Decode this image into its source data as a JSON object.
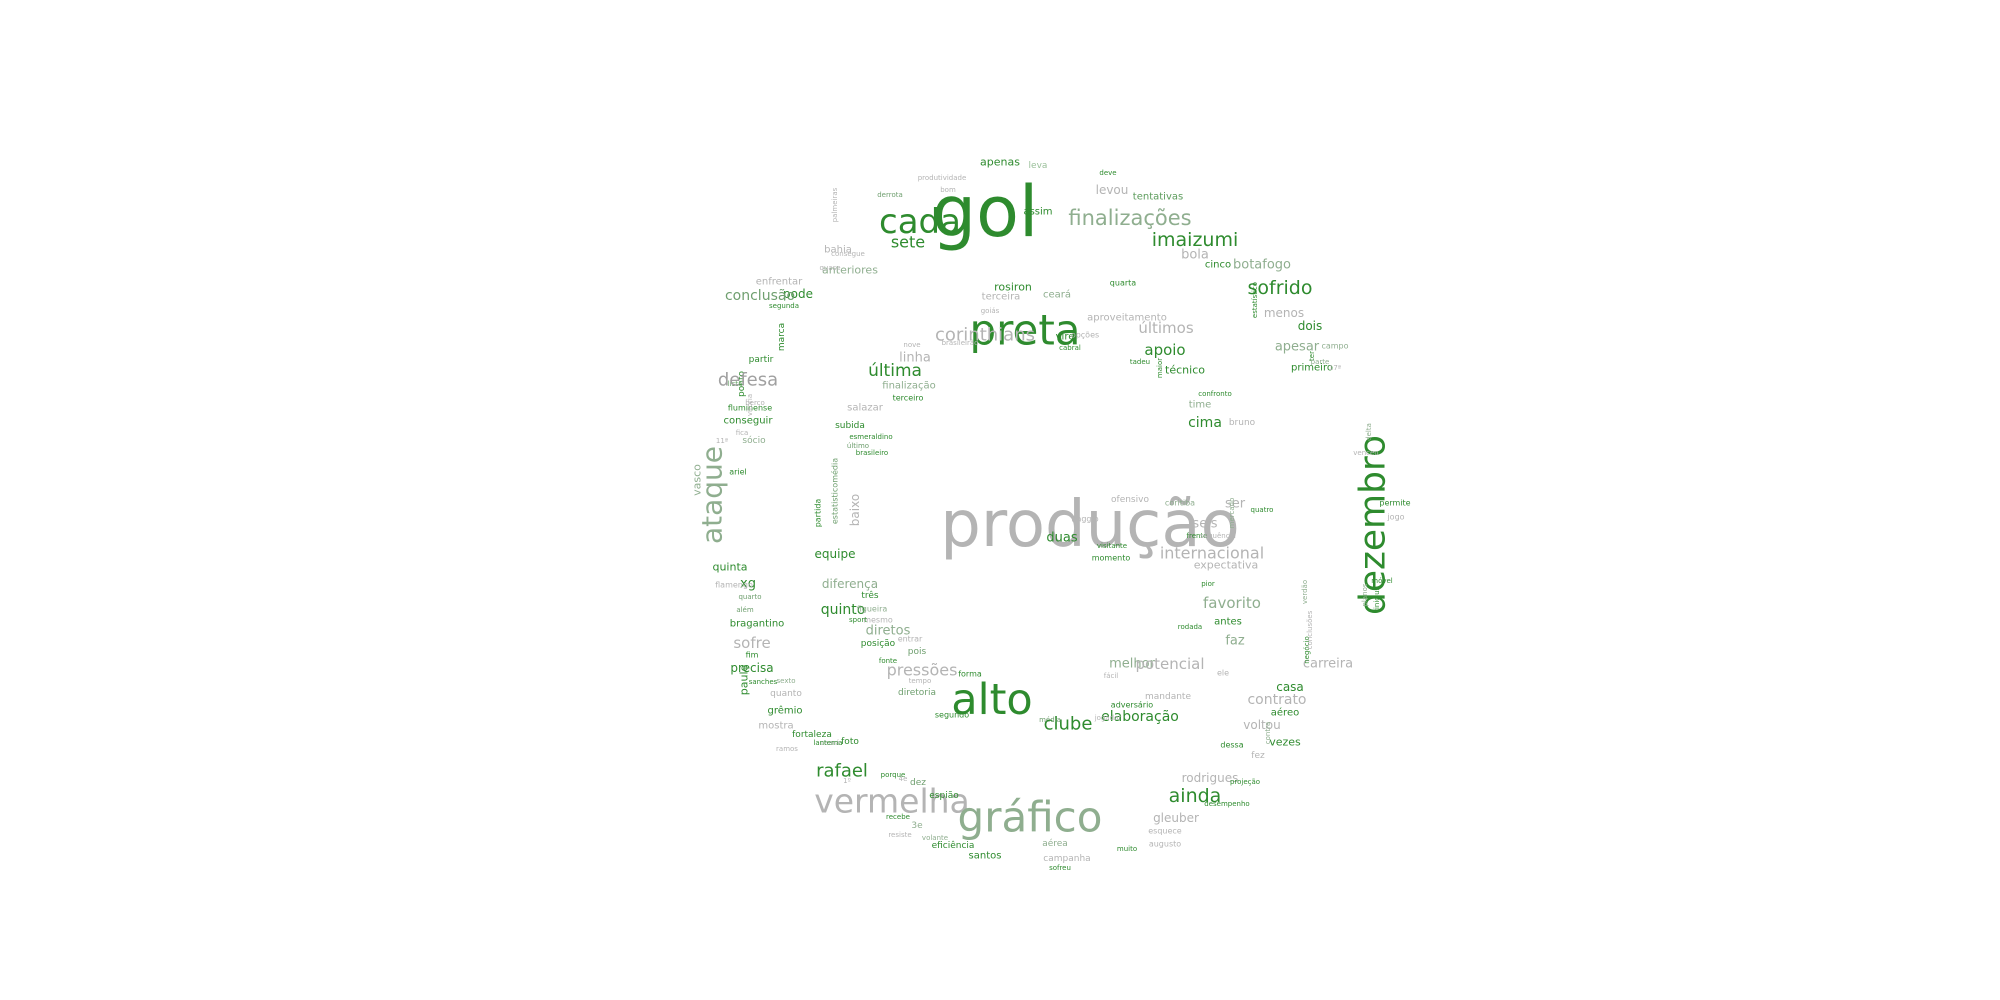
{
  "colors": {
    "background": "#ffffff",
    "dark_green": "#228b22",
    "medium_green": "#3f9a3f",
    "sage": "#6f9f6f",
    "grey": "#b4b4b4",
    "light_grey": "#c8c8c8"
  },
  "words": [
    {
      "text": "gol",
      "color": "#2e8b2e",
      "vertical": false
    },
    {
      "text": "cada",
      "color": "#2e8b2e",
      "vertical": false
    },
    {
      "text": "finalizações",
      "color": "#8fae8f",
      "vertical": false
    },
    {
      "text": "apenas",
      "color": "#2e8b2e",
      "vertical": false
    },
    {
      "text": "leva",
      "color": "#9ac09a",
      "vertical": false
    },
    {
      "text": "levou",
      "color": "#b4b4b4",
      "vertical": false
    },
    {
      "text": "tentativas",
      "color": "#5c9c5c",
      "vertical": false
    },
    {
      "text": "assim",
      "color": "#2e8b2e",
      "vertical": false
    },
    {
      "text": "deve",
      "color": "#2e8b2e",
      "vertical": false
    },
    {
      "text": "produtividade",
      "color": "#b4b4b4",
      "vertical": false
    },
    {
      "text": "derrota",
      "color": "#6f9f6f",
      "vertical": false
    },
    {
      "text": "bom",
      "color": "#b4b4b4",
      "vertical": false
    },
    {
      "text": "imaizumi",
      "color": "#2e8b2e",
      "vertical": false
    },
    {
      "text": "bola",
      "color": "#b4b4b4",
      "vertical": false
    },
    {
      "text": "cinco",
      "color": "#2e8b2e",
      "vertical": false
    },
    {
      "text": "botafogo",
      "color": "#8fae8f",
      "vertical": false
    },
    {
      "text": "sete",
      "color": "#2e8b2e",
      "vertical": false
    },
    {
      "text": "anteriores",
      "color": "#8fae8f",
      "vertical": false
    },
    {
      "text": "bahia",
      "color": "#b4b4b4",
      "vertical": false
    },
    {
      "text": "palmeiras",
      "color": "#b4b4b4",
      "vertical": true
    },
    {
      "text": "consegue",
      "color": "#b4b4b4",
      "vertical": false
    },
    {
      "text": "quase",
      "color": "#b4b4b4",
      "vertical": false
    },
    {
      "text": "enfrentar",
      "color": "#b4b4b4",
      "vertical": false
    },
    {
      "text": "pode",
      "color": "#2e8b2e",
      "vertical": false
    },
    {
      "text": "segunda",
      "color": "#2e8b2e",
      "vertical": false
    },
    {
      "text": "conclusão",
      "color": "#6f9f6f",
      "vertical": false
    },
    {
      "text": "marca",
      "color": "#2e8b2e",
      "vertical": true
    },
    {
      "text": "partir",
      "color": "#2e8b2e",
      "vertical": false
    },
    {
      "text": "ponto",
      "color": "#2e8b2e",
      "vertical": true
    },
    {
      "text": "lista",
      "color": "#5c9c5c",
      "vertical": false
    },
    {
      "text": "defesa",
      "color": "#a0a0a0",
      "vertical": false
    },
    {
      "text": "fluminense",
      "color": "#2e8b2e",
      "vertical": false
    },
    {
      "text": "conseguir",
      "color": "#2e8b2e",
      "vertical": false
    },
    {
      "text": "vitória",
      "color": "#b4b4b4",
      "vertical": true
    },
    {
      "text": "berço",
      "color": "#b4b4b4",
      "vertical": false
    },
    {
      "text": "fica",
      "color": "#b4b4b4",
      "vertical": false
    },
    {
      "text": "sócio",
      "color": "#8fae8f",
      "vertical": false
    },
    {
      "text": "11ª",
      "color": "#b4b4b4",
      "vertical": false
    },
    {
      "text": "ataque",
      "color": "#8fae8f",
      "vertical": true
    },
    {
      "text": "ariel",
      "color": "#2e8b2e",
      "vertical": false
    },
    {
      "text": "vasco",
      "color": "#8fae8f",
      "vertical": true
    },
    {
      "text": "quinta",
      "color": "#2e8b2e",
      "vertical": false
    },
    {
      "text": "xg",
      "color": "#2e8b2e",
      "vertical": false
    },
    {
      "text": "flamengo",
      "color": "#b4b4b4",
      "vertical": false
    },
    {
      "text": "quarto",
      "color": "#6f9f6f",
      "vertical": false
    },
    {
      "text": "além",
      "color": "#6f9f6f",
      "vertical": false
    },
    {
      "text": "bragantino",
      "color": "#2e8b2e",
      "vertical": false
    },
    {
      "text": "sofre",
      "color": "#b4b4b4",
      "vertical": false
    },
    {
      "text": "fim",
      "color": "#2e8b2e",
      "vertical": false
    },
    {
      "text": "precisa",
      "color": "#2e8b2e",
      "vertical": false
    },
    {
      "text": "paulo",
      "color": "#2e8b2e",
      "vertical": true
    },
    {
      "text": "sanches",
      "color": "#2e8b2e",
      "vertical": false
    },
    {
      "text": "sexto",
      "color": "#8fae8f",
      "vertical": false
    },
    {
      "text": "quanto",
      "color": "#b4b4b4",
      "vertical": false
    },
    {
      "text": "grêmio",
      "color": "#2e8b2e",
      "vertical": false
    },
    {
      "text": "mostra",
      "color": "#b4b4b4",
      "vertical": false
    },
    {
      "text": "fortaleza",
      "color": "#2e8b2e",
      "vertical": false
    },
    {
      "text": "ramos",
      "color": "#b4b4b4",
      "vertical": false
    },
    {
      "text": "ceará",
      "color": "#b4b4b4",
      "vertical": false
    },
    {
      "text": "lanterna",
      "color": "#2e8b2e",
      "vertical": false
    },
    {
      "text": "foto",
      "color": "#2e8b2e",
      "vertical": false
    },
    {
      "text": "preta",
      "color": "#2e8b2e",
      "vertical": false
    },
    {
      "text": "rosiron",
      "color": "#2e8b2e",
      "vertical": false
    },
    {
      "text": "ceará",
      "color": "#8fae8f",
      "vertical": false
    },
    {
      "text": "quarta",
      "color": "#2e8b2e",
      "vertical": false
    },
    {
      "text": "terceira",
      "color": "#b4b4b4",
      "vertical": false
    },
    {
      "text": "aproveitamento",
      "color": "#b4b4b4",
      "vertical": false
    },
    {
      "text": "goiás",
      "color": "#b4b4b4",
      "vertical": false
    },
    {
      "text": "últimos",
      "color": "#b4b4b4",
      "vertical": false
    },
    {
      "text": "corinthians",
      "color": "#b4b4b4",
      "vertical": false
    },
    {
      "text": "vire",
      "color": "#2e8b2e",
      "vertical": false
    },
    {
      "text": "opções",
      "color": "#b4b4b4",
      "vertical": false
    },
    {
      "text": "cabral",
      "color": "#2e8b2e",
      "vertical": false
    },
    {
      "text": "nove",
      "color": "#b4b4b4",
      "vertical": false
    },
    {
      "text": "brasileirão",
      "color": "#b4b4b4",
      "vertical": false
    },
    {
      "text": "linha",
      "color": "#b4b4b4",
      "vertical": false
    },
    {
      "text": "última",
      "color": "#2e8b2e",
      "vertical": false
    },
    {
      "text": "finalização",
      "color": "#8fae8f",
      "vertical": false
    },
    {
      "text": "terceiro",
      "color": "#2e8b2e",
      "vertical": false
    },
    {
      "text": "salazar",
      "color": "#b4b4b4",
      "vertical": false
    },
    {
      "text": "subida",
      "color": "#2e8b2e",
      "vertical": false
    },
    {
      "text": "esmeraldino",
      "color": "#2e8b2e",
      "vertical": false
    },
    {
      "text": "último",
      "color": "#6f9f6f",
      "vertical": false
    },
    {
      "text": "brasileiro",
      "color": "#2e8b2e",
      "vertical": false
    },
    {
      "text": "estatisticomédia",
      "color": "#6f9f6f",
      "vertical": true
    },
    {
      "text": "baixo",
      "color": "#b4b4b4",
      "vertical": true
    },
    {
      "text": "partida",
      "color": "#2e8b2e",
      "vertical": true
    },
    {
      "text": "equipe",
      "color": "#2e8b2e",
      "vertical": false
    },
    {
      "text": "apoio",
      "color": "#2e8b2e",
      "vertical": false
    },
    {
      "text": "tadeu",
      "color": "#2e8b2e",
      "vertical": false
    },
    {
      "text": "maior",
      "color": "#2e8b2e",
      "vertical": true
    },
    {
      "text": "técnico",
      "color": "#2e8b2e",
      "vertical": false
    },
    {
      "text": "confronto",
      "color": "#2e8b2e",
      "vertical": false
    },
    {
      "text": "time",
      "color": "#8fae8f",
      "vertical": false
    },
    {
      "text": "cima",
      "color": "#2e8b2e",
      "vertical": false
    },
    {
      "text": "bruno",
      "color": "#b4b4b4",
      "vertical": false
    },
    {
      "text": "sofrido",
      "color": "#2e8b2e",
      "vertical": false
    },
    {
      "text": "menos",
      "color": "#b4b4b4",
      "vertical": false
    },
    {
      "text": "dois",
      "color": "#2e8b2e",
      "vertical": false
    },
    {
      "text": "apesar",
      "color": "#8fae8f",
      "vertical": false
    },
    {
      "text": "campo",
      "color": "#8fae8f",
      "vertical": false
    },
    {
      "text": "ter",
      "color": "#2e8b2e",
      "vertical": true
    },
    {
      "text": "primeiro",
      "color": "#2e8b2e",
      "vertical": false
    },
    {
      "text": "parte",
      "color": "#8fae8f",
      "vertical": false
    },
    {
      "text": "17ª",
      "color": "#b4b4b4",
      "vertical": false
    },
    {
      "text": "estatístico",
      "color": "#2e8b2e",
      "vertical": true
    },
    {
      "text": "dezembro",
      "color": "#2e8b2e",
      "vertical": true
    },
    {
      "text": "delta",
      "color": "#8fae8f",
      "vertical": true
    },
    {
      "text": "venceu",
      "color": "#b4b4b4",
      "vertical": false
    },
    {
      "text": "permite",
      "color": "#2e8b2e",
      "vertical": false
    },
    {
      "text": "jogo",
      "color": "#b4b4b4",
      "vertical": false
    },
    {
      "text": "produção",
      "color": "#b4b4b4",
      "vertical": false
    },
    {
      "text": "ofensivo",
      "color": "#b4b4b4",
      "vertical": false
    },
    {
      "text": "coritiba",
      "color": "#8fae8f",
      "vertical": false
    },
    {
      "text": "ser",
      "color": "#b4b4b4",
      "vertical": false
    },
    {
      "text": "baggio",
      "color": "#b4b4b4",
      "vertical": false
    },
    {
      "text": "mercado",
      "color": "#8fae8f",
      "vertical": true
    },
    {
      "text": "quatro",
      "color": "#2e8b2e",
      "vertical": false
    },
    {
      "text": "seis",
      "color": "#b4b4b4",
      "vertical": false
    },
    {
      "text": "duas",
      "color": "#2e8b2e",
      "vertical": false
    },
    {
      "text": "frente",
      "color": "#2e8b2e",
      "vertical": false
    },
    {
      "text": "sequência",
      "color": "#b4b4b4",
      "vertical": false
    },
    {
      "text": "visitante",
      "color": "#2e8b2e",
      "vertical": false
    },
    {
      "text": "internacional",
      "color": "#b4b4b4",
      "vertical": false
    },
    {
      "text": "momento",
      "color": "#2e8b2e",
      "vertical": false
    },
    {
      "text": "expectativa",
      "color": "#b4b4b4",
      "vertical": false
    },
    {
      "text": "pior",
      "color": "#2e8b2e",
      "vertical": false
    },
    {
      "text": "favorito",
      "color": "#8fae8f",
      "vertical": false
    },
    {
      "text": "antes",
      "color": "#2e8b2e",
      "vertical": false
    },
    {
      "text": "rodada",
      "color": "#2e8b2e",
      "vertical": false
    },
    {
      "text": "faz",
      "color": "#8fae8f",
      "vertical": false
    },
    {
      "text": "melhor",
      "color": "#8fae8f",
      "vertical": false
    },
    {
      "text": "potencial",
      "color": "#b4b4b4",
      "vertical": false
    },
    {
      "text": "ele",
      "color": "#b4b4b4",
      "vertical": false
    },
    {
      "text": "fácil",
      "color": "#b4b4b4",
      "vertical": false
    },
    {
      "text": "mandante",
      "color": "#b4b4b4",
      "vertical": false
    },
    {
      "text": "adversário",
      "color": "#2e8b2e",
      "vertical": false
    },
    {
      "text": "elaboração",
      "color": "#2e8b2e",
      "vertical": false
    },
    {
      "text": "clube",
      "color": "#2e8b2e",
      "vertical": false
    },
    {
      "text": "jogador",
      "color": "#b4b4b4",
      "vertical": false
    },
    {
      "text": "média",
      "color": "#6f9f6f",
      "vertical": false
    },
    {
      "text": "alto",
      "color": "#2e8b2e",
      "vertical": false
    },
    {
      "text": "diferença",
      "color": "#8fae8f",
      "vertical": false
    },
    {
      "text": "três",
      "color": "#2e8b2e",
      "vertical": false
    },
    {
      "text": "quinto",
      "color": "#2e8b2e",
      "vertical": false
    },
    {
      "text": "figueira",
      "color": "#8fae8f",
      "vertical": false
    },
    {
      "text": "mesmo",
      "color": "#b4b4b4",
      "vertical": false
    },
    {
      "text": "sport",
      "color": "#2e8b2e",
      "vertical": false
    },
    {
      "text": "diretos",
      "color": "#8fae8f",
      "vertical": false
    },
    {
      "text": "entrar",
      "color": "#b4b4b4",
      "vertical": false
    },
    {
      "text": "posição",
      "color": "#2e8b2e",
      "vertical": false
    },
    {
      "text": "pois",
      "color": "#6f9f6f",
      "vertical": false
    },
    {
      "text": "fonte",
      "color": "#2e8b2e",
      "vertical": false
    },
    {
      "text": "pressões",
      "color": "#b4b4b4",
      "vertical": false
    },
    {
      "text": "tempo",
      "color": "#b4b4b4",
      "vertical": false
    },
    {
      "text": "forma",
      "color": "#2e8b2e",
      "vertical": false
    },
    {
      "text": "diretoria",
      "color": "#6f9f6f",
      "vertical": false
    },
    {
      "text": "segundo",
      "color": "#2e8b2e",
      "vertical": false
    },
    {
      "text": "casa",
      "color": "#2e8b2e",
      "vertical": false
    },
    {
      "text": "contrato",
      "color": "#b4b4b4",
      "vertical": false
    },
    {
      "text": "aéreo",
      "color": "#2e8b2e",
      "vertical": false
    },
    {
      "text": "voltou",
      "color": "#b4b4b4",
      "vertical": false
    },
    {
      "text": "contra",
      "color": "#8fae8f",
      "vertical": true
    },
    {
      "text": "vezes",
      "color": "#2e8b2e",
      "vertical": false
    },
    {
      "text": "dessa",
      "color": "#2e8b2e",
      "vertical": false
    },
    {
      "text": "fez",
      "color": "#b4b4b4",
      "vertical": false
    },
    {
      "text": "carreira",
      "color": "#b4b4b4",
      "vertical": false
    },
    {
      "text": "negócio",
      "color": "#2e8b2e",
      "vertical": true
    },
    {
      "text": "conclusões",
      "color": "#b4b4b4",
      "vertical": true
    },
    {
      "text": "verdão",
      "color": "#8fae8f",
      "vertical": true
    },
    {
      "text": "planos",
      "color": "#8fae8f",
      "vertical": true
    },
    {
      "text": "vinicius",
      "color": "#2e8b2e",
      "vertical": true
    },
    {
      "text": "móvel",
      "color": "#2e8b2e",
      "vertical": false
    },
    {
      "text": "rafael",
      "color": "#2e8b2e",
      "vertical": false
    },
    {
      "text": "porque",
      "color": "#2e8b2e",
      "vertical": false
    },
    {
      "text": "1º",
      "color": "#b4b4b4",
      "vertical": false
    },
    {
      "text": "4e",
      "color": "#b4b4b4",
      "vertical": false
    },
    {
      "text": "dez",
      "color": "#6f9f6f",
      "vertical": false
    },
    {
      "text": "vermelha",
      "color": "#b4b4b4",
      "vertical": false
    },
    {
      "text": "espião",
      "color": "#2e8b2e",
      "vertical": false
    },
    {
      "text": "gráfico",
      "color": "#8fae8f",
      "vertical": false
    },
    {
      "text": "rodrigues",
      "color": "#b4b4b4",
      "vertical": false
    },
    {
      "text": "projeção",
      "color": "#2e8b2e",
      "vertical": false
    },
    {
      "text": "ainda",
      "color": "#2e8b2e",
      "vertical": false
    },
    {
      "text": "desempenho",
      "color": "#2e8b2e",
      "vertical": false
    },
    {
      "text": "gleuber",
      "color": "#b4b4b4",
      "vertical": false
    },
    {
      "text": "esquece",
      "color": "#b4b4b4",
      "vertical": false
    },
    {
      "text": "recebe",
      "color": "#2e8b2e",
      "vertical": false
    },
    {
      "text": "3e",
      "color": "#8fae8f",
      "vertical": false
    },
    {
      "text": "resiste",
      "color": "#b4b4b4",
      "vertical": false
    },
    {
      "text": "volante",
      "color": "#8fae8f",
      "vertical": false
    },
    {
      "text": "eficiência",
      "color": "#2e8b2e",
      "vertical": false
    },
    {
      "text": "santos",
      "color": "#2e8b2e",
      "vertical": false
    },
    {
      "text": "aérea",
      "color": "#8fae8f",
      "vertical": false
    },
    {
      "text": "campanha",
      "color": "#b4b4b4",
      "vertical": false
    },
    {
      "text": "sofreu",
      "color": "#2e8b2e",
      "vertical": false
    },
    {
      "text": "augusto",
      "color": "#b4b4b4",
      "vertical": false
    },
    {
      "text": "muito",
      "color": "#2e8b2e",
      "vertical": false
    }
  ]
}
